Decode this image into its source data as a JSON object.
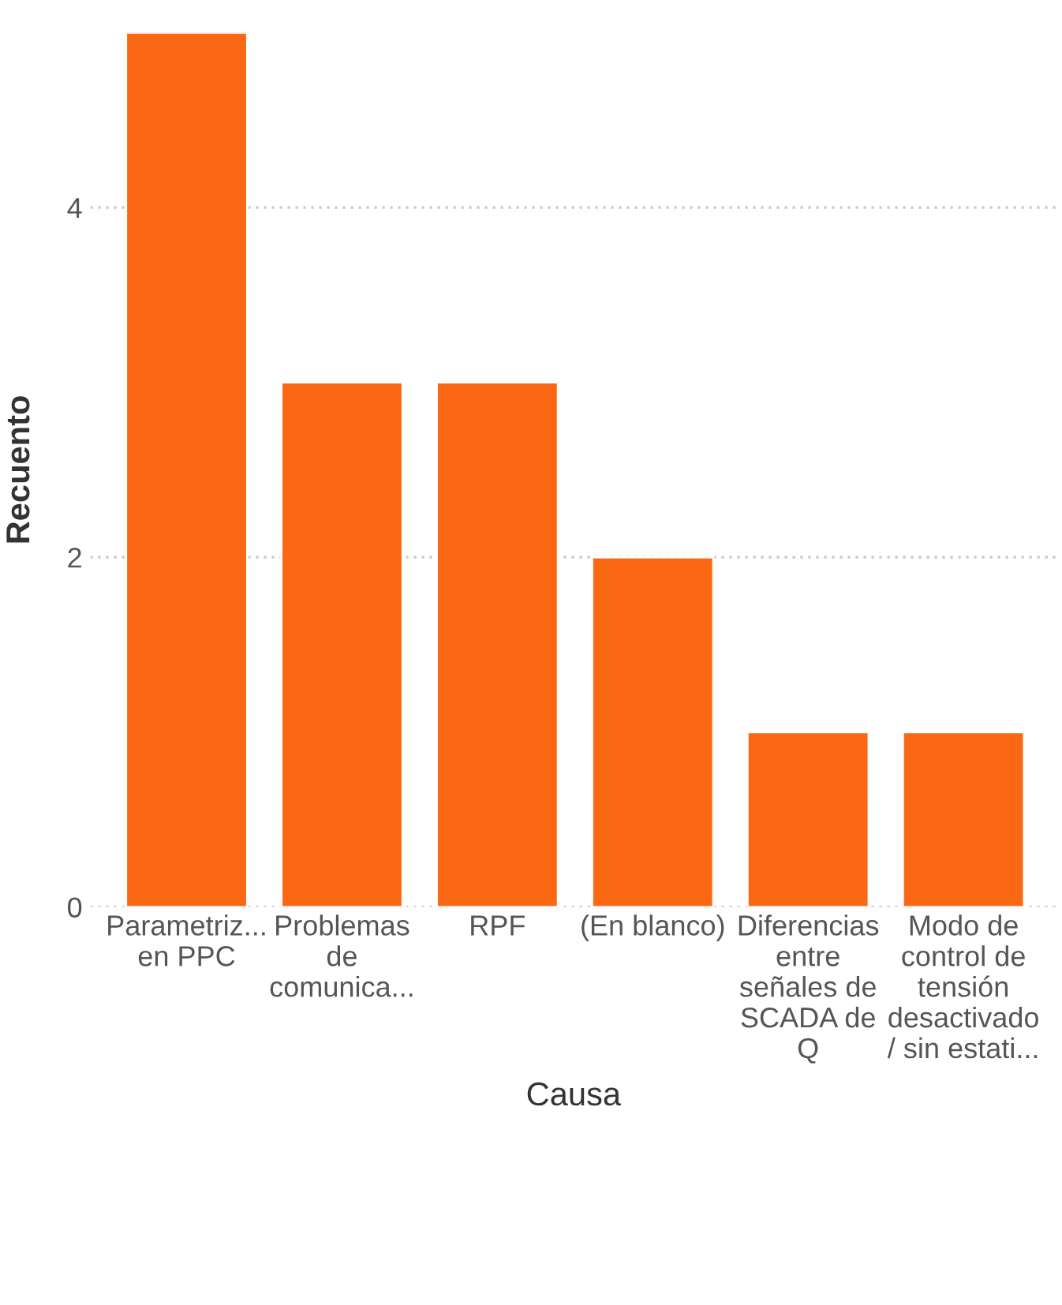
{
  "chart_data": {
    "type": "bar",
    "xlabel": "Causa",
    "ylabel": "Recuento",
    "categories": [
      "Parametriz...\nen PPC",
      "Problemas\nde\ncomunica...",
      "RPF",
      "(En blanco)",
      "Diferencias\nentre\nseñales de\nSCADA de\nQ",
      "Modo de\ncontrol de\ntensión\ndesactivado\n/ sin estati..."
    ],
    "values": [
      5,
      3,
      3,
      2,
      1,
      1
    ],
    "color": "#fa6814",
    "ylim": [
      0,
      5
    ],
    "yticks": [
      0,
      2,
      4
    ],
    "grid": "y"
  }
}
